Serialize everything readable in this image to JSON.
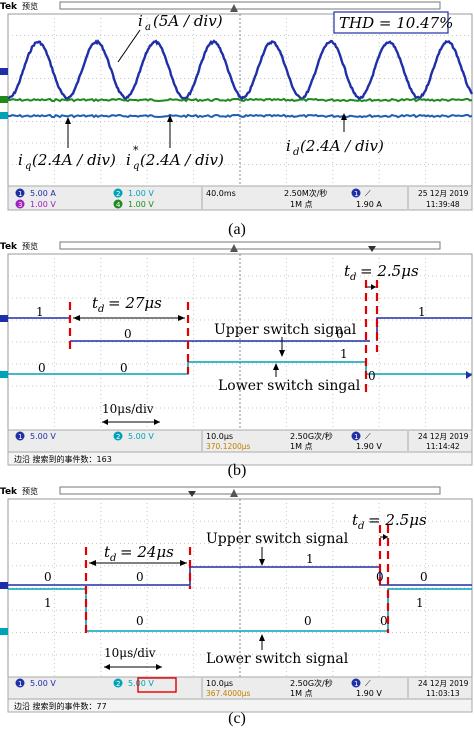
{
  "colors": {
    "screen": "#ffffff",
    "grid": "#c9c9c9",
    "ch1": "#1f2fa8",
    "ch2": "#00a2b8",
    "ch3": "#a020c0",
    "ch4": "#1e8a1e",
    "marker": "#e00000",
    "status_bg": "#ececec"
  },
  "panels": [
    {
      "caption": "(a)",
      "brand": "Tek",
      "mode": "预览",
      "status": {
        "ch1": "5.00 A",
        "ch2": "1.00 V",
        "ch3": "1.00 V",
        "ch4": "1.00 V",
        "ch1_num": "1",
        "ch2_num": "2",
        "ch3_num": "3",
        "ch4_num": "4",
        "timebase": "40.0ms",
        "rate": "2.50M次/秒",
        "points": "1M 点",
        "trigger_level": "1.90 A",
        "trigger_ch": "1",
        "date": "25 12月 2019",
        "time": "11:39:48"
      },
      "labels": {
        "ia": "i",
        "ia_sub": "a",
        "ia_scale": "(5A / div)",
        "thd": "THD = 10.47%",
        "iq": "i",
        "iq_sub": "q",
        "iq_scale": "(2.4A / div)",
        "iqs": "i",
        "iqs_sub": "q",
        "iqs_sup": "*",
        "iqs_scale": "(2.4A / div)",
        "id": "i",
        "id_sub": "d",
        "id_scale": "(2.4A / div)"
      }
    },
    {
      "caption": "(b)",
      "brand": "Tek",
      "mode": "预览",
      "status": {
        "ch1": "5.00 V",
        "ch2": "5.00 V",
        "ch1_num": "1",
        "ch2_num": "2",
        "timebase": "10.0μs",
        "cursor": "370.1200μs",
        "rate": "2.50G次/秒",
        "points": "1M 点",
        "trigger_level": "1.90 V",
        "trigger_ch": "1",
        "date": "24 12月 2019",
        "time": "11:14:42",
        "search": "边沿 搜索到的事件数：163"
      },
      "labels": {
        "td_main": "t",
        "td_main_sub": "d",
        "td_main_val": "= 27μs",
        "td_small": "t",
        "td_small_sub": "d",
        "td_small_val": "= 2.5μs",
        "upper": "Upper switch signal",
        "lower": "Lower switch singal",
        "scale": "10μs/div",
        "u1": "1",
        "u0a": "0",
        "u0b": "0",
        "u1b": "1",
        "l0a": "0",
        "l0b": "0",
        "l1": "1",
        "l0c": "0"
      }
    },
    {
      "caption": "(c)",
      "brand": "Tek",
      "mode": "预览",
      "status": {
        "ch1": "5.00 V",
        "ch2": "5.00 V",
        "ch1_num": "1",
        "ch2_num": "2",
        "timebase": "10.0μs",
        "cursor": "367.4000μs",
        "rate": "2.50G次/秒",
        "points": "1M 点",
        "trigger_level": "1.90 V",
        "trigger_ch": "1",
        "date": "24 12月 2019",
        "time": "11:03:13",
        "search": "边沿 搜索到的事件数：77"
      },
      "labels": {
        "td_main": "t",
        "td_main_sub": "d",
        "td_main_val": "= 24μs",
        "td_small": "t",
        "td_small_sub": "d",
        "td_small_val": "= 2.5μs",
        "upper": "Upper switch signal",
        "lower": "Lower switch signal",
        "scale": "10μs/div",
        "u0a": "0",
        "u0b": "0",
        "u1": "1",
        "u0c": "0",
        "u0d": "0",
        "l1": "1",
        "l0a": "0",
        "l0b": "0",
        "l0c": "0",
        "l0d": "1"
      }
    }
  ]
}
